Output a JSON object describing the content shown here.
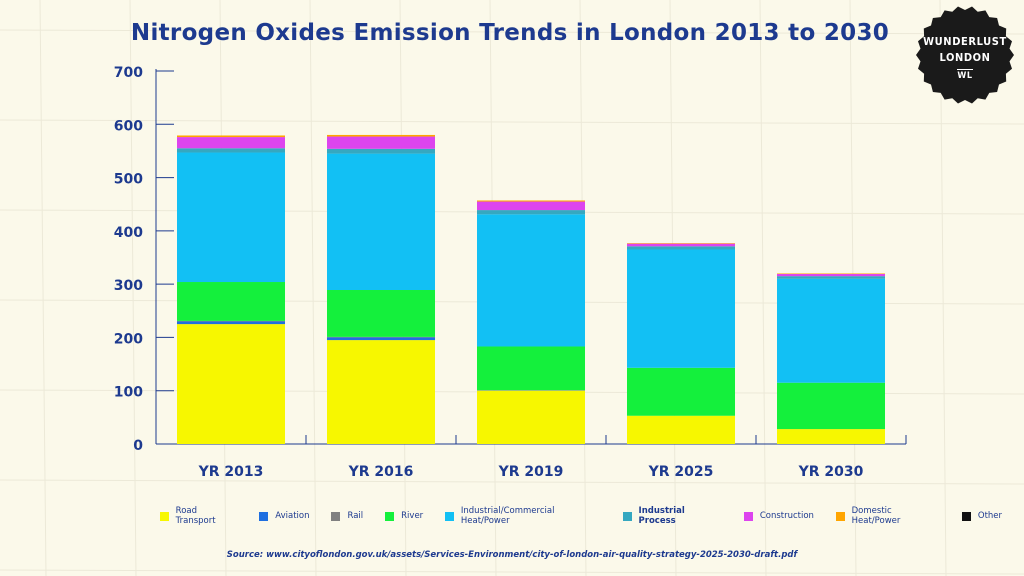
{
  "title": "Nitrogen Oxides Emission Trends in London 2013 to 2030",
  "badge": {
    "line1": "WUNDERLUST",
    "line2": "LONDON",
    "mark": "WL"
  },
  "source": "Source: www.cityoflondon.gov.uk/assets/Services-Environment/city-of-london-air-quality-strategy-2025-2030-draft.pdf",
  "colors": {
    "background": "#fbf9ea",
    "title": "#1d3a8f",
    "axis": "#1d3a8f",
    "badge": "#1a1a1a"
  },
  "chart_data": {
    "type": "bar",
    "stacked": true,
    "title": "Nitrogen Oxides Emission Trends in London 2013 to 2030",
    "xlabel": "",
    "ylabel": "",
    "ylim": [
      0,
      700
    ],
    "yticks": [
      0,
      100,
      200,
      300,
      400,
      500,
      600,
      700
    ],
    "categories": [
      "YR 2013",
      "YR 2016",
      "YR 2019",
      "YR 2025",
      "YR 2030"
    ],
    "series": [
      {
        "name": "Road Transport",
        "color": "#f7f700",
        "values": [
          225,
          195,
          100,
          53,
          28
        ]
      },
      {
        "name": "Aviation",
        "color": "#1f6fe0",
        "values": [
          5,
          5,
          0,
          0,
          0
        ]
      },
      {
        "name": "Rail",
        "color": "#808080",
        "values": [
          1,
          1,
          1,
          0,
          0
        ]
      },
      {
        "name": "River",
        "color": "#14f03c",
        "values": [
          73,
          88,
          82,
          90,
          87
        ]
      },
      {
        "name": "Industrial/Commercial Heat/Power",
        "color": "#12c0f4",
        "values": [
          243,
          256,
          248,
          222,
          195
        ]
      },
      {
        "name": "Industrial Process",
        "color": "#35a8c0",
        "values": [
          8,
          9,
          8,
          6,
          5
        ]
      },
      {
        "name": "Construction",
        "color": "#dd44ee",
        "values": [
          21,
          23,
          16,
          5,
          4
        ]
      },
      {
        "name": "Domestic Heat/Power",
        "color": "#ffa500",
        "values": [
          3,
          3,
          2,
          1,
          1
        ]
      },
      {
        "name": "Other",
        "color": "#111111",
        "values": [
          0,
          0,
          0,
          0,
          0
        ]
      }
    ],
    "legend_position": "bottom"
  }
}
